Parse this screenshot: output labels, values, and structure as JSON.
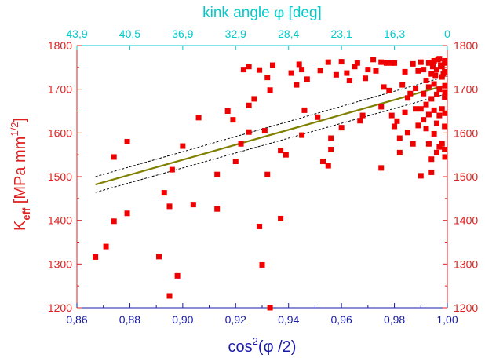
{
  "chart_data": {
    "type": "scatter",
    "title": "",
    "top_axis_label_main": "kink angle ",
    "top_axis_label_symbol": "φ",
    "top_axis_label_unit": " [deg]",
    "xlabel_main": "cos",
    "xlabel_sup": "2",
    "xlabel_rest": "(φ /2)",
    "ylabel_main": "K",
    "ylabel_sub": "eff",
    "ylabel_unit": " [MPa mm",
    "ylabel_sup": "1/2",
    "ylabel_close": "]",
    "xlim": [
      0.86,
      1.0
    ],
    "ylim": [
      1200,
      1800
    ],
    "x_ticks": [
      0.86,
      0.88,
      0.9,
      0.92,
      0.94,
      0.96,
      0.98,
      1.0
    ],
    "x_tick_labels": [
      "0,86",
      "0,88",
      "0,90",
      "0,92",
      "0,94",
      "0,96",
      "0,98",
      "1,00"
    ],
    "y_ticks": [
      1200,
      1300,
      1400,
      1500,
      1600,
      1700,
      1800
    ],
    "y_tick_labels": [
      "1200",
      "1300",
      "1400",
      "1500",
      "1600",
      "1700",
      "1800"
    ],
    "top_ticks_cos2": [
      0.86,
      0.88,
      0.9,
      0.92,
      0.94,
      0.96,
      0.98,
      1.0
    ],
    "top_tick_labels": [
      "43,9",
      "40,5",
      "36,9",
      "32,9",
      "28,4",
      "23,1",
      "16,3",
      "0"
    ],
    "colors": {
      "points": "#ee0000",
      "fit_line": "#808000",
      "confidence": "#000000",
      "bottom_axis": "#1a1aa8",
      "top_axis": "#00cccc",
      "side_axes": "#e02020"
    },
    "fit": {
      "x": [
        0.867,
        1.0
      ],
      "y": [
        1482,
        1710
      ]
    },
    "confidence_upper": {
      "x": [
        0.867,
        1.0
      ],
      "y": [
        1500,
        1730
      ]
    },
    "confidence_lower": {
      "x": [
        0.867,
        1.0
      ],
      "y": [
        1464,
        1690
      ]
    },
    "series": [
      {
        "points": [
          [
            0.867,
            1316
          ],
          [
            0.871,
            1340
          ],
          [
            0.874,
            1398
          ],
          [
            0.874,
            1545
          ],
          [
            0.879,
            1416
          ],
          [
            0.879,
            1580
          ],
          [
            0.891,
            1317
          ],
          [
            0.893,
            1463
          ],
          [
            0.895,
            1432
          ],
          [
            0.895,
            1227
          ],
          [
            0.896,
            1516
          ],
          [
            0.898,
            1273
          ],
          [
            0.9,
            1570
          ],
          [
            0.904,
            1436
          ],
          [
            0.906,
            1635
          ],
          [
            0.913,
            1505
          ],
          [
            0.913,
            1426
          ],
          [
            0.917,
            1650
          ],
          [
            0.919,
            1630
          ],
          [
            0.92,
            1535
          ],
          [
            0.922,
            1575
          ],
          [
            0.923,
            1745
          ],
          [
            0.925,
            1663
          ],
          [
            0.925,
            1602
          ],
          [
            0.925,
            1752
          ],
          [
            0.927,
            1678
          ],
          [
            0.929,
            1386
          ],
          [
            0.929,
            1744
          ],
          [
            0.93,
            1298
          ],
          [
            0.931,
            1605
          ],
          [
            0.932,
            1505
          ],
          [
            0.932,
            1727
          ],
          [
            0.933,
            1698
          ],
          [
            0.933,
            1200
          ],
          [
            0.934,
            1755
          ],
          [
            0.937,
            1404
          ],
          [
            0.937,
            1560
          ],
          [
            0.939,
            1550
          ],
          [
            0.941,
            1737
          ],
          [
            0.943,
            1710
          ],
          [
            0.944,
            1757
          ],
          [
            0.945,
            1745
          ],
          [
            0.945,
            1595
          ],
          [
            0.946,
            1652
          ],
          [
            0.947,
            1723
          ],
          [
            0.951,
            1636
          ],
          [
            0.952,
            1743
          ],
          [
            0.953,
            1535
          ],
          [
            0.955,
            1525
          ],
          [
            0.955,
            1762
          ],
          [
            0.956,
            1562
          ],
          [
            0.956,
            1588
          ],
          [
            0.958,
            1733
          ],
          [
            0.96,
            1612
          ],
          [
            0.96,
            1763
          ],
          [
            0.962,
            1737
          ],
          [
            0.963,
            1720
          ],
          [
            0.965,
            1752
          ],
          [
            0.966,
            1760
          ],
          [
            0.967,
            1628
          ],
          [
            0.968,
            1640
          ],
          [
            0.969,
            1725
          ],
          [
            0.97,
            1745
          ],
          [
            0.972,
            1768
          ],
          [
            0.973,
            1742
          ],
          [
            0.975,
            1762
          ],
          [
            0.975,
            1660
          ],
          [
            0.975,
            1520
          ],
          [
            0.976,
            1705
          ],
          [
            0.977,
            1760
          ],
          [
            0.978,
            1697
          ],
          [
            0.979,
            1760
          ],
          [
            0.979,
            1640
          ],
          [
            0.98,
            1760
          ],
          [
            0.98,
            1615
          ],
          [
            0.981,
            1627
          ],
          [
            0.982,
            1588
          ],
          [
            0.982,
            1555
          ],
          [
            0.983,
            1710
          ],
          [
            0.984,
            1647
          ],
          [
            0.984,
            1740
          ],
          [
            0.985,
            1601
          ],
          [
            0.985,
            1680
          ],
          [
            0.986,
            1690
          ],
          [
            0.987,
            1575
          ],
          [
            0.987,
            1758
          ],
          [
            0.988,
            1655
          ],
          [
            0.988,
            1702
          ],
          [
            0.989,
            1617
          ],
          [
            0.989,
            1742
          ],
          [
            0.99,
            1655
          ],
          [
            0.99,
            1502
          ],
          [
            0.99,
            1762
          ],
          [
            0.991,
            1630
          ],
          [
            0.991,
            1690
          ],
          [
            0.991,
            1745
          ],
          [
            0.992,
            1610
          ],
          [
            0.992,
            1665
          ],
          [
            0.992,
            1720
          ],
          [
            0.993,
            1575
          ],
          [
            0.993,
            1642
          ],
          [
            0.993,
            1705
          ],
          [
            0.993,
            1760
          ],
          [
            0.994,
            1510
          ],
          [
            0.994,
            1540
          ],
          [
            0.994,
            1678
          ],
          [
            0.994,
            1735
          ],
          [
            0.995,
            1598
          ],
          [
            0.995,
            1652
          ],
          [
            0.995,
            1712
          ],
          [
            0.995,
            1765
          ],
          [
            0.996,
            1555
          ],
          [
            0.996,
            1622
          ],
          [
            0.996,
            1688
          ],
          [
            0.996,
            1745
          ],
          [
            0.997,
            1568
          ],
          [
            0.997,
            1640
          ],
          [
            0.997,
            1700
          ],
          [
            0.997,
            1770
          ],
          [
            0.998,
            1575
          ],
          [
            0.998,
            1655
          ],
          [
            0.998,
            1728
          ],
          [
            0.998,
            1752
          ],
          [
            0.999,
            1562
          ],
          [
            0.999,
            1615
          ],
          [
            0.999,
            1682
          ],
          [
            0.999,
            1740
          ],
          [
            0.999,
            1760
          ],
          [
            1.0,
            1545
          ],
          [
            1.0,
            1645
          ],
          [
            1.0,
            1708
          ],
          [
            1.0,
            1765
          ],
          [
            0.9995,
            1692
          ],
          [
            0.9985,
            1735
          ],
          [
            0.9975,
            1755
          ],
          [
            0.9965,
            1768
          ],
          [
            0.9955,
            1732
          ],
          [
            0.9945,
            1752
          ]
        ]
      }
    ]
  }
}
